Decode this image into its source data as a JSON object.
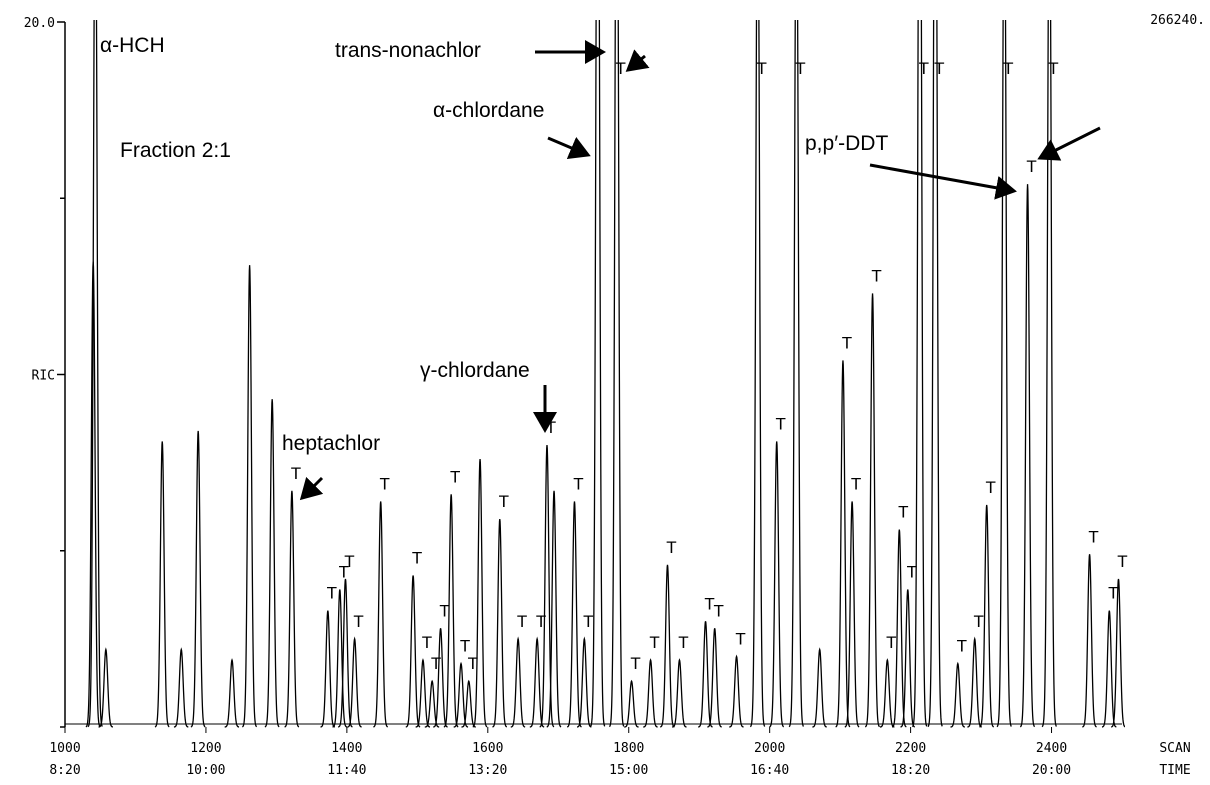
{
  "chart_data": {
    "type": "chromatogram",
    "scale_label": "266240.",
    "x": [
      1040,
      1043,
      1058,
      1138,
      1165,
      1189,
      1237,
      1262,
      1294,
      1322,
      1373,
      1390,
      1398,
      1411,
      1448,
      1494,
      1508,
      1521,
      1533,
      1548,
      1562,
      1573,
      1589,
      1617,
      1643,
      1670,
      1684,
      1694,
      1723,
      1737,
      1756,
      1783,
      1804,
      1831,
      1855,
      1872,
      1909,
      1922,
      1953,
      1983,
      2010,
      2038,
      2071,
      2104,
      2117,
      2146,
      2167,
      2184,
      2196,
      2213,
      2235,
      2267,
      2291,
      2308,
      2333,
      2366,
      2397,
      2454,
      2482,
      2495
    ],
    "values": [
      13.2,
      25,
      2.2,
      8.1,
      2.2,
      8.4,
      1.9,
      13.1,
      9.3,
      6.7,
      3.3,
      3.9,
      4.2,
      2.5,
      6.4,
      4.3,
      1.9,
      1.3,
      2.8,
      6.6,
      1.8,
      1.3,
      7.6,
      5.9,
      2.5,
      2.5,
      8.0,
      6.7,
      6.4,
      2.5,
      30,
      28,
      1.3,
      1.9,
      4.6,
      1.9,
      3.0,
      2.8,
      2.0,
      25,
      8.1,
      25,
      2.2,
      10.4,
      6.4,
      12.3,
      1.9,
      5.6,
      3.9,
      30,
      30,
      1.8,
      2.5,
      6.3,
      25,
      15.4,
      25,
      4.9,
      3.3,
      4.2
    ],
    "peak_labels": [
      null,
      null,
      null,
      null,
      null,
      null,
      null,
      null,
      null,
      "T",
      "T",
      "T",
      "T",
      "T",
      "T",
      "T",
      "T",
      "T",
      "T",
      "T",
      "T",
      "T",
      null,
      "T",
      "T",
      "T",
      "T",
      null,
      "T",
      "T",
      null,
      "T",
      "T",
      "T",
      "T",
      "T",
      "T",
      "T",
      "T",
      "T",
      "T",
      "T",
      null,
      "T",
      "T",
      "T",
      "T",
      "T",
      "T",
      "T",
      "T",
      "T",
      "T",
      "T",
      "T",
      "T",
      "T",
      "T",
      "T",
      "T"
    ],
    "xlim": [
      1000,
      2500
    ],
    "ylim": [
      0,
      20
    ],
    "xticks": [
      1000,
      1200,
      1400,
      1600,
      1800,
      2000,
      2200,
      2400
    ],
    "xtick_times": [
      "8:20",
      "10:00",
      "11:40",
      "13:20",
      "15:00",
      "16:40",
      "18:20",
      "20:00"
    ],
    "x_label": "SCAN",
    "x2_label": "TIME",
    "yticks": [
      {
        "value": 20,
        "label": "20.0"
      },
      {
        "value": 10,
        "label": "RIC"
      }
    ],
    "yticks_minor": [
      0,
      5,
      15
    ],
    "color": "#000000",
    "annotations": [
      "α-HCH",
      "Fraction 2:1",
      "trans-nonachlor",
      "α-chlordane",
      "p,p′-DDT",
      "γ-chlordane",
      "heptachlor"
    ]
  }
}
